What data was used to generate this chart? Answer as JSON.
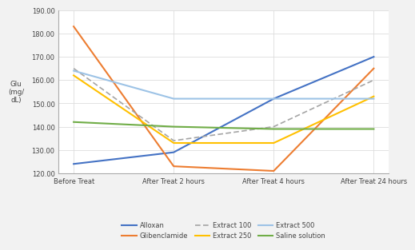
{
  "x_labels": [
    "Before Treat",
    "After Treat 2 hours",
    "After Treat 4 hours",
    "After Treat 24 hours"
  ],
  "series": {
    "Alloxan": {
      "values": [
        124,
        129,
        152,
        170
      ],
      "color": "#4472C4",
      "linestyle": "-",
      "linewidth": 1.5
    },
    "Glibenclamide": {
      "values": [
        183,
        123,
        121,
        165
      ],
      "color": "#ED7D31",
      "linestyle": "-",
      "linewidth": 1.5
    },
    "Extract 100": {
      "values": [
        165,
        134,
        140,
        160
      ],
      "color": "#A5A5A5",
      "linestyle": "--",
      "linewidth": 1.2,
      "dashes": [
        4,
        2
      ]
    },
    "Extract 250": {
      "values": [
        162,
        133,
        133,
        153
      ],
      "color": "#FFC000",
      "linestyle": "-",
      "linewidth": 1.5
    },
    "Extract 500": {
      "values": [
        164,
        152,
        152,
        152
      ],
      "color": "#9DC3E6",
      "linestyle": "-",
      "linewidth": 1.5
    },
    "Saline solution": {
      "values": [
        142,
        140,
        139,
        139
      ],
      "color": "#70AD47",
      "linestyle": "-",
      "linewidth": 1.5
    }
  },
  "ylabel": "Glu\n(mg/\ndL)",
  "ylim": [
    120,
    190
  ],
  "yticks": [
    120,
    130,
    140,
    150,
    160,
    170,
    180,
    190
  ],
  "background_color": "#F2F2F2",
  "plot_bg_color": "#FFFFFF",
  "legend_row1": [
    "Alloxan",
    "Glibenclamide",
    "Extract 100"
  ],
  "legend_row2": [
    "Extract 250",
    "Extract 500",
    "Saline solution"
  ]
}
